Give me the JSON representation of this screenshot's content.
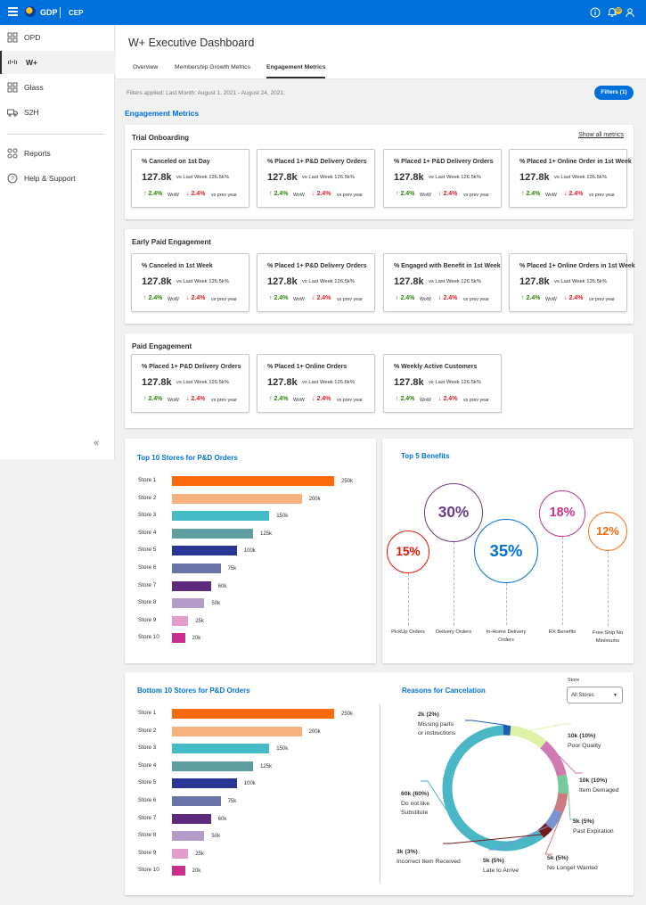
{
  "topbar": {
    "brand": "GDP",
    "app": "CEP",
    "notif_count": "10"
  },
  "sidebar": {
    "items": [
      {
        "label": "OPD"
      },
      {
        "label": "W+"
      },
      {
        "label": "Glass"
      },
      {
        "label": "S2H"
      },
      {
        "label": "Reports"
      },
      {
        "label": "Help & Support"
      }
    ],
    "collapse": "«"
  },
  "header": {
    "title": "W+ Executive Dashboard",
    "tabs": [
      {
        "label": "Overview"
      },
      {
        "label": "Membership Growth Metrics"
      },
      {
        "label": "Engagement Metrics"
      }
    ]
  },
  "filters": {
    "text": "Filters applied:  Last Month: August 1, 2021 - August 24, 2021;",
    "button": "Filters (1)"
  },
  "section_title": "Engagement Metrics",
  "show_all": "Show all metrics",
  "groups": [
    {
      "title": "Trial Onboarding",
      "cards": [
        {
          "name": "% Canceled on 1st Day",
          "value": "127.8k",
          "vs": "vs Last Week 126.5k%",
          "up": "2.4%",
          "up_label": "WoW",
          "down": "2.4%",
          "down_label": "vs prev year"
        },
        {
          "name": "% Placed 1+ P&D Delivery Orders",
          "value": "127.8k",
          "vs": "vs Last Week 126.5k%",
          "up": "2.4%",
          "up_label": "WoW",
          "down": "2.4%",
          "down_label": "vs prev year"
        },
        {
          "name": "% Placed 1+ P&D Delivery Orders",
          "value": "127.8k",
          "vs": "vs Last Week 126.5k%",
          "up": "2.4%",
          "up_label": "WoW",
          "down": "2.4%",
          "down_label": "vs prev year"
        },
        {
          "name": "% Placed 1+ Online Order in 1st Week",
          "value": "127.8k",
          "vs": "vs Last Week 126.5k%",
          "up": "2.4%",
          "up_label": "WoW",
          "down": "2.4%",
          "down_label": "vs prev year"
        }
      ]
    },
    {
      "title": "Early Paid Engagement",
      "cards": [
        {
          "name": "% Canceled in 1st Week",
          "value": "127.8k",
          "vs": "vs Last Week 126.5k%",
          "up": "2.4%",
          "up_label": "WoW",
          "down": "2.4%",
          "down_label": "vs prev year"
        },
        {
          "name": "% Placed 1+ P&D Delivery Orders",
          "value": "127.8k",
          "vs": "vs Last Week 126.5k%",
          "up": "2.4%",
          "up_label": "WoW",
          "down": "2.4%",
          "down_label": "vs prev year"
        },
        {
          "name": "% Engaged with Benefit in 1st Week",
          "value": "127.8k",
          "vs": "vs Last Week 126.5k%",
          "up": "2.4%",
          "up_label": "WoW",
          "down": "2.4%",
          "down_label": "vs prev year"
        },
        {
          "name": "% Placed 1+ Online Orders in 1st Week",
          "value": "127.8k",
          "vs": "vs Last Week 126.5k%",
          "up": "2.4%",
          "up_label": "WoW",
          "down": "2.4%",
          "down_label": "vs prev year"
        }
      ]
    },
    {
      "title": "Paid Engagement",
      "cards": [
        {
          "name": "% Placed 1+ P&D Delivery Orders",
          "value": "127.8k",
          "vs": "vs Last Week 126.5k%",
          "up": "2.4%",
          "up_label": "WoW",
          "down": "2.4%",
          "down_label": "vs prev year"
        },
        {
          "name": "% Placed 1+ Online Orders",
          "value": "127.8k",
          "vs": "vs Last Week 126.5k%",
          "up": "2.4%",
          "up_label": "WoW",
          "down": "2.4%",
          "down_label": "vs prev year"
        },
        {
          "name": "% Weekly Active Customers",
          "value": "127.8k",
          "vs": "vs Last Week 126.5k%",
          "up": "2.4%",
          "up_label": "WoW",
          "down": "2.4%",
          "down_label": "vs prev year"
        }
      ]
    }
  ],
  "bar_colors": [
    "#fa6a0a",
    "#f9b07f",
    "#45bbc8",
    "#5e9ea1",
    "#2a3695",
    "#6a74a9",
    "#5e2b7d",
    "#b59cc8",
    "#e49ccd",
    "#cc2e8f"
  ],
  "bubble_colors": [
    "#ea1100",
    "#6d3a86",
    "#0071dc",
    "#cc2e8f",
    "#fa6a0a"
  ],
  "donut_colors": {
    "missing": "#1f5cb0",
    "poor": "#dff1a6",
    "damaged": "#cf7ab1",
    "expiration": "#78c99a",
    "nolonger": "#cd7b7e",
    "late": "#7c93d3",
    "incorrect": "#751a1d",
    "notlike": "#49b7c5"
  },
  "chart_data": [
    {
      "type": "bar",
      "title": "Top 10 Stores for P&D Orders",
      "categories": [
        "Store 1",
        "Store 2",
        "Store 3",
        "Store 4",
        "Store 5",
        "Store 6",
        "Store 7",
        "Store 8",
        "Store 9",
        "Store 10"
      ],
      "values": [
        250,
        200,
        150,
        125,
        100,
        75,
        60,
        50,
        25,
        20
      ],
      "labels": [
        "250k",
        "200k",
        "150k",
        "125k",
        "100k",
        "75k",
        "60k",
        "50k",
        "25k",
        "20k"
      ]
    },
    {
      "type": "scatter",
      "title": "Top 5 Benefits",
      "categories": [
        "PickUp Orders",
        "Delivery Orders",
        "In-Home Delivery Orders",
        "RX Benefits",
        "Free Ship No Minimums"
      ],
      "values": [
        15,
        30,
        35,
        18,
        12
      ],
      "labels": [
        "15%",
        "30%",
        "35%",
        "18%",
        "12%"
      ]
    },
    {
      "type": "bar",
      "title": "Bottom 10 Stores for P&D Orders",
      "categories": [
        "Store 1",
        "Store 2",
        "Store 3",
        "Store 4",
        "Store 5",
        "Store 6",
        "Store 7",
        "Store 8",
        "Store 9",
        "Store 10"
      ],
      "values": [
        250,
        200,
        150,
        125,
        100,
        75,
        60,
        50,
        25,
        20
      ],
      "labels": [
        "250k",
        "200k",
        "150k",
        "125k",
        "100k",
        "75k",
        "60k",
        "50k",
        "25k",
        "20k"
      ]
    },
    {
      "type": "pie",
      "title": "Reasons for Cancelation",
      "store_label": "Store",
      "store_value": "All Stores",
      "slices": [
        {
          "key": "missing",
          "value_text": "2k (2%)",
          "label_lines": [
            "Missing parts",
            "or instructions"
          ],
          "percent": 2
        },
        {
          "key": "poor",
          "value_text": "10k (10%)",
          "label_lines": [
            "Poor Quality"
          ],
          "percent": 10
        },
        {
          "key": "damaged",
          "value_text": "10k (10%)",
          "label_lines": [
            "Item Demaged"
          ],
          "percent": 10
        },
        {
          "key": "expiration",
          "value_text": "5k (5%)",
          "label_lines": [
            "Past Expiration"
          ],
          "percent": 5
        },
        {
          "key": "nolonger",
          "value_text": "5k (5%)",
          "label_lines": [
            "No Longer Wanted"
          ],
          "percent": 5
        },
        {
          "key": "late",
          "value_text": "5k (5%)",
          "label_lines": [
            "Late to Arrive"
          ],
          "percent": 5
        },
        {
          "key": "incorrect",
          "value_text": "3k (3%)",
          "label_lines": [
            "Incorrect Item Received"
          ],
          "percent": 3
        },
        {
          "key": "notlike",
          "value_text": "60k (60%)",
          "label_lines": [
            "Do not like",
            "Substitute"
          ],
          "percent": 60
        }
      ]
    }
  ]
}
